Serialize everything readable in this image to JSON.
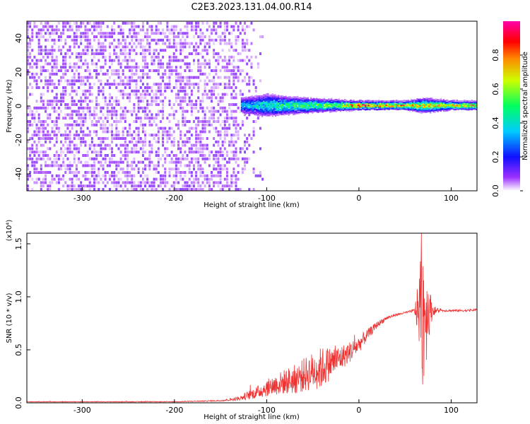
{
  "page_title": "C2E3.2023.131.04.00.R14",
  "chart_data": [
    {
      "type": "heatmap",
      "title": "C2E3.2023.131.04.00.R14",
      "xlabel": "Height of straight line (km)",
      "ylabel": "Frequency (Hz)",
      "xlim": [
        -360,
        128
      ],
      "ylim": [
        -50,
        50
      ],
      "x_ticks": [
        -300,
        -200,
        -100,
        0,
        100
      ],
      "y_ticks": [
        -40,
        -20,
        0,
        20,
        40
      ],
      "colorbar": {
        "label": "Normalized spectral amplitude",
        "range": [
          0,
          1
        ],
        "ticks": [
          "0.0",
          "0.2",
          "0.4",
          "0.6",
          "0.8"
        ],
        "colors": [
          "#ffffff",
          "#8000ff",
          "#0000ff",
          "#00ffff",
          "#00ff00",
          "#ffff00",
          "#ff0000",
          "#ff00aa"
        ]
      },
      "noise_region_x": [
        -360,
        -100
      ],
      "signal_band": [
        {
          "x": -125,
          "width_hz": 6,
          "amplitude": 0.35
        },
        {
          "x": -100,
          "width_hz": 8,
          "amplitude": 0.45
        },
        {
          "x": -75,
          "width_hz": 6,
          "amplitude": 0.5
        },
        {
          "x": -50,
          "width_hz": 5,
          "amplitude": 0.55
        },
        {
          "x": -25,
          "width_hz": 4,
          "amplitude": 0.6
        },
        {
          "x": 0,
          "width_hz": 3,
          "amplitude": 0.85
        },
        {
          "x": 25,
          "width_hz": 3,
          "amplitude": 0.8
        },
        {
          "x": 50,
          "width_hz": 3,
          "amplitude": 0.75
        },
        {
          "x": 70,
          "width_hz": 5,
          "amplitude": 0.7
        },
        {
          "x": 100,
          "width_hz": 3,
          "amplitude": 0.75
        },
        {
          "x": 128,
          "width_hz": 3,
          "amplitude": 0.7
        }
      ]
    },
    {
      "type": "line",
      "xlabel": "Height of straight line (km)",
      "ylabel": "SNR (10 * v/v)",
      "y_multiplier": "(x10⁴)",
      "xlim": [
        -360,
        128
      ],
      "ylim": [
        0,
        1.6
      ],
      "x_ticks": [
        -300,
        -200,
        -100,
        0,
        100
      ],
      "y_ticks": [
        "0.0",
        "0.5",
        "1.0",
        "1.5"
      ],
      "line_color": "#ee3333",
      "series": [
        {
          "x": [
            -360,
            -300,
            -250,
            -200,
            -150,
            -130,
            -120,
            -110,
            -100,
            -90,
            -80,
            -70,
            -60,
            -50,
            -40,
            -30,
            -20,
            -10,
            0,
            10,
            20,
            30,
            40,
            50,
            55,
            60,
            65,
            68,
            70,
            72,
            75,
            80,
            90,
            100,
            110,
            120,
            128
          ],
          "y": [
            0.01,
            0.01,
            0.01,
            0.01,
            0.02,
            0.04,
            0.07,
            0.1,
            0.14,
            0.17,
            0.2,
            0.22,
            0.26,
            0.3,
            0.33,
            0.38,
            0.42,
            0.48,
            0.55,
            0.65,
            0.74,
            0.8,
            0.83,
            0.85,
            0.86,
            0.87,
            0.88,
            0.9,
            0.85,
            0.86,
            0.87,
            0.87,
            0.87,
            0.87,
            0.87,
            0.87,
            0.88
          ],
          "noise_amplitude": [
            0.003,
            0.003,
            0.003,
            0.003,
            0.006,
            0.02,
            0.04,
            0.06,
            0.08,
            0.1,
            0.12,
            0.14,
            0.16,
            0.18,
            0.2,
            0.15,
            0.12,
            0.1,
            0.08,
            0.05,
            0.03,
            0.02,
            0.01,
            0.01,
            0.01,
            0.02,
            0.3,
            0.75,
            0.75,
            0.6,
            0.3,
            0.05,
            0.01,
            0.01,
            0.01,
            0.01,
            0.01
          ]
        }
      ]
    }
  ]
}
